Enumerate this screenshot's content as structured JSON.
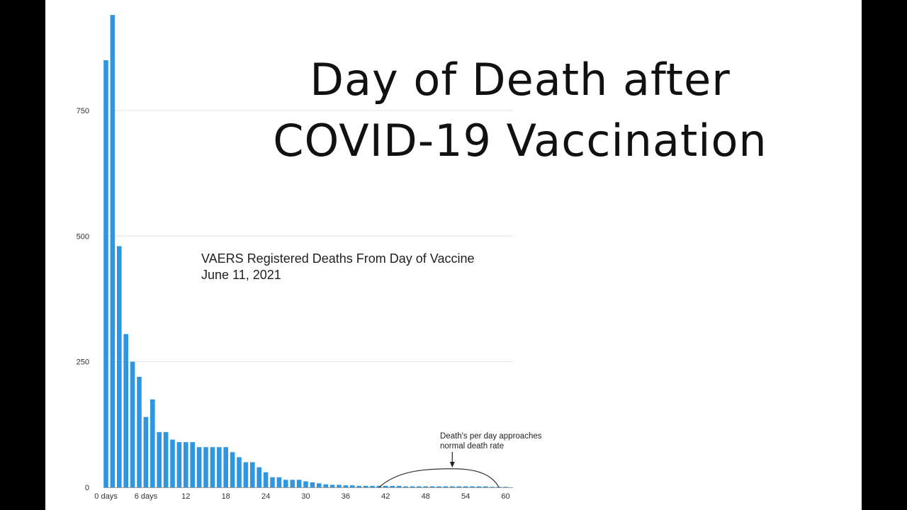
{
  "title_lines": [
    "Day of Death after",
    "COVID-19 Vaccination"
  ],
  "chart_data": {
    "type": "bar",
    "subtitle_lines": [
      "VAERS Registered Deaths From Day of Vaccine",
      "June 11, 2021"
    ],
    "xlabel": "",
    "ylabel": "",
    "ylim": [
      0,
      950
    ],
    "yticks": [
      0,
      250,
      500,
      750
    ],
    "xticks": [
      {
        "day": 0,
        "label": "0 days"
      },
      {
        "day": 6,
        "label": "6 days"
      },
      {
        "day": 12,
        "label": "12"
      },
      {
        "day": 18,
        "label": "18"
      },
      {
        "day": 24,
        "label": "24"
      },
      {
        "day": 30,
        "label": "30"
      },
      {
        "day": 36,
        "label": "36"
      },
      {
        "day": 42,
        "label": "42"
      },
      {
        "day": 48,
        "label": "48"
      },
      {
        "day": 54,
        "label": "54"
      },
      {
        "day": 60,
        "label": "60"
      }
    ],
    "grid": true,
    "bar_color": "#2f97df",
    "x": [
      0,
      1,
      2,
      3,
      4,
      5,
      6,
      7,
      8,
      9,
      10,
      11,
      12,
      13,
      14,
      15,
      16,
      17,
      18,
      19,
      20,
      21,
      22,
      23,
      24,
      25,
      26,
      27,
      28,
      29,
      30,
      31,
      32,
      33,
      34,
      35,
      36,
      37,
      38,
      39,
      40,
      41,
      42,
      43,
      44,
      45,
      46,
      47,
      48,
      49,
      50,
      51,
      52,
      53,
      54,
      55,
      56,
      57,
      58,
      59,
      60
    ],
    "values": [
      850,
      940,
      480,
      305,
      250,
      220,
      140,
      175,
      110,
      110,
      95,
      90,
      90,
      90,
      80,
      80,
      80,
      80,
      80,
      70,
      60,
      50,
      50,
      40,
      30,
      20,
      20,
      15,
      15,
      15,
      12,
      10,
      8,
      6,
      5,
      5,
      4,
      4,
      3,
      3,
      3,
      3,
      3,
      3,
      3,
      2,
      2,
      2,
      2,
      2,
      2,
      2,
      2,
      2,
      2,
      2,
      2,
      2,
      1,
      1,
      1
    ],
    "annotation": {
      "lines": [
        "Death's per day approaches",
        "normal death rate"
      ],
      "arrow_day": 52,
      "curve": {
        "start_day": 41,
        "peak_day": 52,
        "peak_value": 37,
        "end_day": 59
      }
    }
  }
}
